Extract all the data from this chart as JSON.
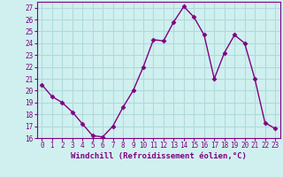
{
  "x": [
    0,
    1,
    2,
    3,
    4,
    5,
    6,
    7,
    8,
    9,
    10,
    11,
    12,
    13,
    14,
    15,
    16,
    17,
    18,
    19,
    20,
    21,
    22,
    23
  ],
  "y": [
    20.5,
    19.5,
    19.0,
    18.2,
    17.2,
    16.2,
    16.1,
    17.0,
    18.6,
    20.0,
    22.0,
    24.3,
    24.2,
    25.8,
    27.1,
    26.2,
    24.7,
    21.0,
    23.2,
    24.7,
    24.0,
    21.0,
    17.3,
    16.8
  ],
  "line_color": "#800080",
  "marker": "D",
  "markersize": 2.5,
  "linewidth": 1.0,
  "xlabel": "Windchill (Refroidissement éolien,°C)",
  "xlabel_fontsize": 6.5,
  "ylim": [
    16,
    27.5
  ],
  "xlim": [
    -0.5,
    23.5
  ],
  "yticks": [
    16,
    17,
    18,
    19,
    20,
    21,
    22,
    23,
    24,
    25,
    26,
    27
  ],
  "xticks": [
    0,
    1,
    2,
    3,
    4,
    5,
    6,
    7,
    8,
    9,
    10,
    11,
    12,
    13,
    14,
    15,
    16,
    17,
    18,
    19,
    20,
    21,
    22,
    23
  ],
  "xtick_labels": [
    "0",
    "1",
    "2",
    "3",
    "4",
    "5",
    "6",
    "7",
    "8",
    "9",
    "10",
    "11",
    "12",
    "13",
    "14",
    "15",
    "16",
    "17",
    "18",
    "19",
    "20",
    "21",
    "22",
    "23"
  ],
  "background_color": "#d0f0f0",
  "grid_color": "#b0dada",
  "tick_color": "#800080",
  "tick_fontsize": 5.5,
  "spine_color": "#800080",
  "label_color": "#800080"
}
